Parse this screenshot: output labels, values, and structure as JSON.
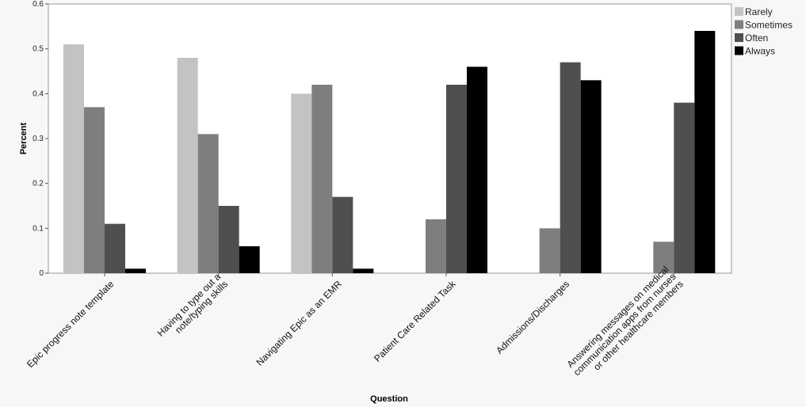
{
  "chart_data": {
    "type": "bar",
    "title": "",
    "xlabel": "Question",
    "ylabel": "Percent",
    "ylim": [
      0,
      0.6
    ],
    "yticks": [
      "0",
      "0.1",
      "0.2",
      "0.3",
      "0.4",
      "0.5",
      "0.6"
    ],
    "grid": false,
    "legend_position": "top-right",
    "categories": [
      [
        "Epic progress note template"
      ],
      [
        "Having to type out a",
        "note/typing skills"
      ],
      [
        "Navigating Epic as an EMR"
      ],
      [
        "Patient Care Related Task"
      ],
      [
        "Admissions/Discharges"
      ],
      [
        "Answering messages on medical",
        "communication apps from nurses",
        "or other healthcare members"
      ]
    ],
    "series": [
      {
        "name": "Rarely",
        "color": "#c3c3c3",
        "values": [
          0.51,
          0.48,
          0.4,
          0,
          0,
          0
        ]
      },
      {
        "name": "Sometimes",
        "color": "#7e7e7e",
        "values": [
          0.37,
          0.31,
          0.42,
          0.12,
          0.1,
          0.07
        ]
      },
      {
        "name": "Often",
        "color": "#4f4f4f",
        "values": [
          0.11,
          0.15,
          0.17,
          0.42,
          0.47,
          0.38
        ]
      },
      {
        "name": "Always",
        "color": "#000000",
        "values": [
          0.01,
          0.06,
          0.01,
          0.46,
          0.43,
          0.54
        ]
      }
    ]
  }
}
